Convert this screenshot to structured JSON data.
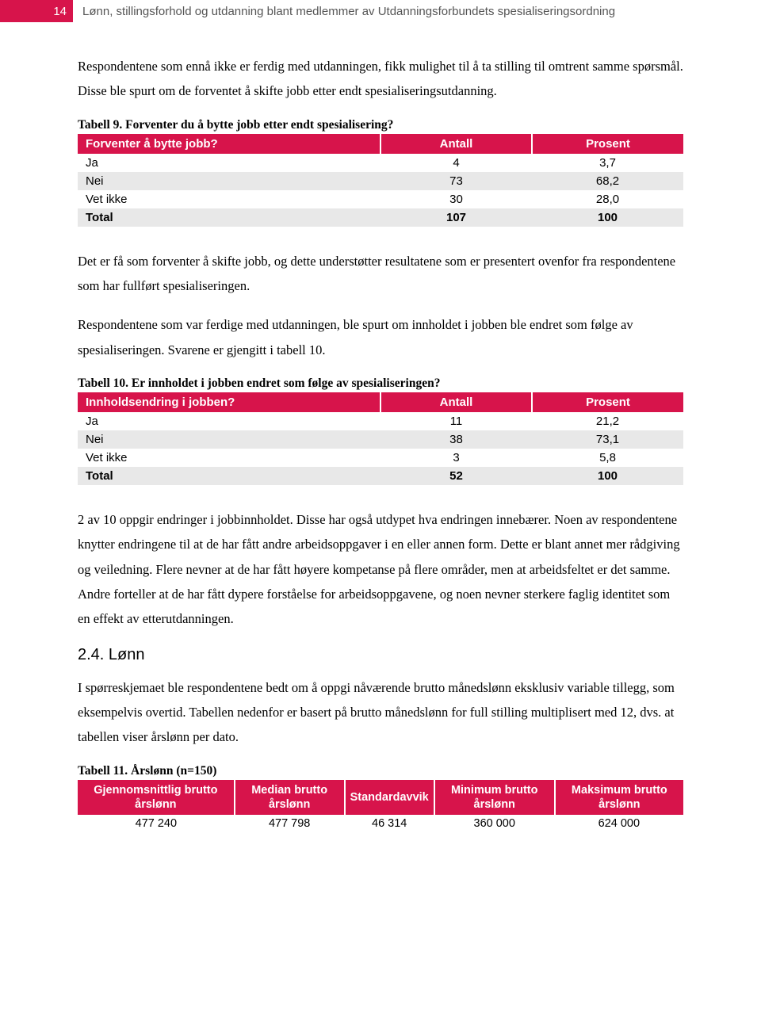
{
  "header": {
    "page_number": "14",
    "running_title": "Lønn, stillingsforhold og utdanning blant medlemmer av Utdanningsforbundets spesialiseringsordning"
  },
  "para1": "Respondentene som ennå ikke er ferdig med utdanningen, fikk mulighet til å ta stilling til omtrent samme spørsmål. Disse ble spurt om de forventet å skifte jobb etter endt spesialiseringsutdanning.",
  "table9": {
    "caption": "Tabell 9. Forventer du å bytte jobb etter endt spesialisering?",
    "columns": [
      "Forventer å bytte jobb?",
      "Antall",
      "Prosent"
    ],
    "rows": [
      {
        "label": "Ja",
        "antall": "4",
        "prosent": "3,7",
        "shade": "white"
      },
      {
        "label": "Nei",
        "antall": "73",
        "prosent": "68,2",
        "shade": "grey"
      },
      {
        "label": "Vet ikke",
        "antall": "30",
        "prosent": "28,0",
        "shade": "white"
      },
      {
        "label": "Total",
        "antall": "107",
        "prosent": "100",
        "shade": "grey",
        "total": true
      }
    ],
    "colwidths": [
      "50%",
      "25%",
      "25%"
    ]
  },
  "para2": "Det er få som forventer å skifte jobb, og dette understøtter resultatene som er presentert ovenfor fra respondentene som har fullført spesialiseringen.",
  "para3": "Respondentene som var ferdige med utdanningen, ble spurt om innholdet i jobben ble endret som følge av spesialiseringen. Svarene er gjengitt i tabell 10.",
  "table10": {
    "caption": "Tabell 10. Er innholdet i jobben endret som følge av spesialiseringen?",
    "columns": [
      "Innholdsendring i jobben?",
      "Antall",
      "Prosent"
    ],
    "rows": [
      {
        "label": "Ja",
        "antall": "11",
        "prosent": "21,2",
        "shade": "white"
      },
      {
        "label": "Nei",
        "antall": "38",
        "prosent": "73,1",
        "shade": "grey"
      },
      {
        "label": "Vet ikke",
        "antall": "3",
        "prosent": "5,8",
        "shade": "white"
      },
      {
        "label": "Total",
        "antall": "52",
        "prosent": "100",
        "shade": "grey",
        "total": true
      }
    ],
    "colwidths": [
      "50%",
      "25%",
      "25%"
    ]
  },
  "para4": "2 av 10 oppgir endringer i jobbinnholdet. Disse har også utdypet hva endringen innebærer. Noen av respondentene knytter endringene til at de har fått andre arbeidsoppgaver i en eller annen form. Dette er blant annet mer rådgiving og veiledning. Flere nevner at de har fått høyere kompetanse på flere områder, men at arbeidsfeltet er det samme. Andre forteller at de har fått dypere forståelse for arbeidsoppgavene, og noen nevner sterkere faglig identitet som en effekt av etterutdanningen.",
  "section24": "2.4. Lønn",
  "para5": "I spørreskjemaet ble respondentene bedt om å oppgi nåværende brutto månedslønn eksklusiv variable tillegg, som eksempelvis overtid. Tabellen nedenfor er basert på brutto månedslønn for full stilling multiplisert med 12, dvs. at tabellen viser årslønn per dato.",
  "table11": {
    "caption": "Tabell 11. Årslønn (n=150)",
    "columns": [
      "Gjennomsnittlig brutto årslønn",
      "Median brutto årslønn",
      "Standardavvik",
      "Minimum brutto årslønn",
      "Maksimum brutto årslønn"
    ],
    "row": [
      "477 240",
      "477 798",
      "46 314",
      "360 000",
      "624 000"
    ]
  },
  "colors": {
    "accent": "#d7144b",
    "grey_row": "#e8e8e8",
    "header_text": "#555555"
  }
}
